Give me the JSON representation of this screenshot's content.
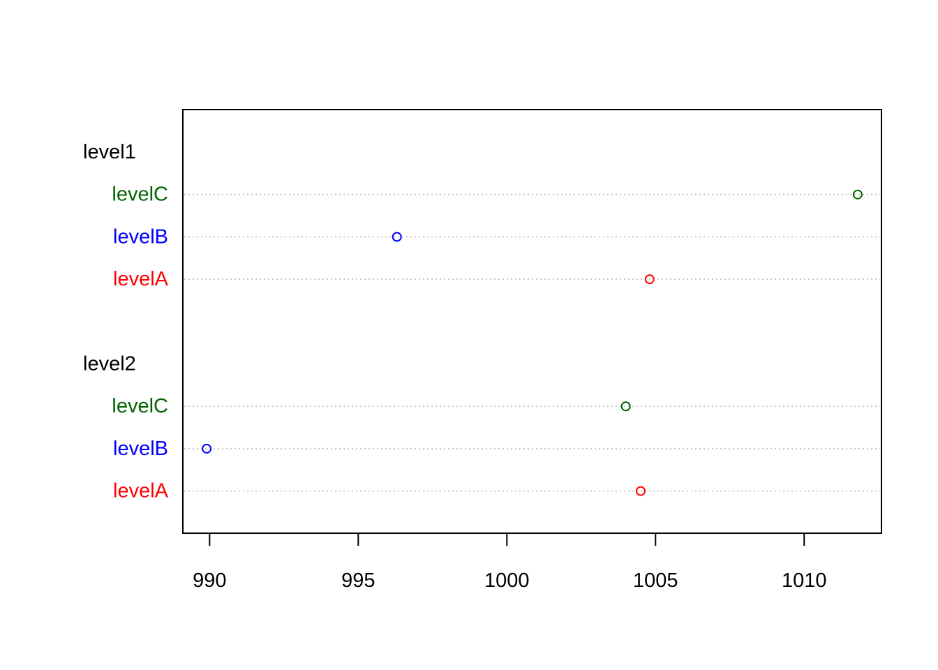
{
  "chart_data": {
    "type": "dotchart",
    "title": "",
    "xlabel": "",
    "ylabel": "",
    "xlim": [
      989.1,
      1012.6
    ],
    "x_ticks": [
      "990",
      "995",
      "1000",
      "1005",
      "1010"
    ],
    "grid": "dotted horizontal line per row",
    "categories": [
      "levelA",
      "levelB",
      "levelC"
    ],
    "category_colors": {
      "levelA": "#FF0000",
      "levelB": "#0000FF",
      "levelC": "#006400"
    },
    "groups": [
      {
        "name": "level1",
        "rows": [
          {
            "label": "levelC",
            "value": 1011.8
          },
          {
            "label": "levelB",
            "value": 996.3
          },
          {
            "label": "levelA",
            "value": 1004.8
          }
        ]
      },
      {
        "name": "level2",
        "rows": [
          {
            "label": "levelC",
            "value": 1004.0
          },
          {
            "label": "levelB",
            "value": 989.9
          },
          {
            "label": "levelA",
            "value": 1004.5
          }
        ]
      }
    ]
  }
}
